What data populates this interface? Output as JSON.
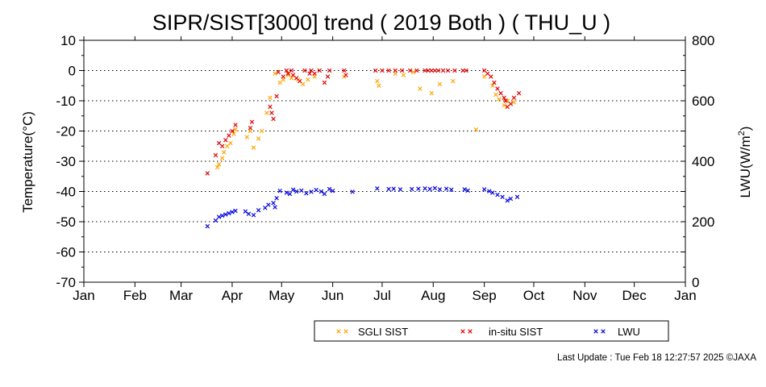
{
  "chart_data": {
    "type": "scatter",
    "title": "SIPR/SIST[3000] trend ( 2019 Both ) ( THU_U )",
    "ylabel": "Temperature(°C)",
    "y2label_main": "LWU(W/m",
    "y2label_sup": "2",
    "y2label_close": ")",
    "ylim": [
      -70,
      10
    ],
    "y2lim": [
      0,
      800
    ],
    "yticks": [
      "10",
      "0",
      "-10",
      "-20",
      "-30",
      "-40",
      "-50",
      "-60",
      "-70"
    ],
    "y2ticks": [
      "800",
      "600",
      "400",
      "200",
      "0"
    ],
    "months": [
      "Jan",
      "Feb",
      "Mar",
      "Apr",
      "May",
      "Jun",
      "Jul",
      "Aug",
      "Sep",
      "Oct",
      "Nov",
      "Dec",
      "Jan"
    ],
    "grid": "dotted horizontal",
    "legend_position": "bottom-right",
    "series": [
      {
        "name": "SGLI SIST",
        "color": "#ffa500",
        "axis": "left",
        "points": [
          [
            "2019-03-23",
            -32
          ],
          [
            "2019-03-24",
            -31
          ],
          [
            "2019-03-26",
            -29
          ],
          [
            "2019-03-27",
            -27
          ],
          [
            "2019-03-29",
            -25
          ],
          [
            "2019-03-31",
            -24
          ],
          [
            "2019-04-02",
            -21
          ],
          [
            "2019-04-03",
            -19.5
          ],
          [
            "2019-04-10",
            -22
          ],
          [
            "2019-04-12",
            -20
          ],
          [
            "2019-04-14",
            -25.5
          ],
          [
            "2019-04-17",
            -22.5
          ],
          [
            "2019-04-19",
            -20
          ],
          [
            "2019-04-22",
            -14
          ],
          [
            "2019-04-24",
            -9
          ],
          [
            "2019-04-27",
            -1
          ],
          [
            "2019-04-30",
            -4
          ],
          [
            "2019-05-02",
            -3
          ],
          [
            "2019-05-05",
            -1.5
          ],
          [
            "2019-05-07",
            -2.5
          ],
          [
            "2019-05-11",
            -3
          ],
          [
            "2019-05-14",
            -4.5
          ],
          [
            "2019-05-17",
            -3
          ],
          [
            "2019-05-21",
            -2
          ],
          [
            "2019-06-08",
            -2
          ],
          [
            "2019-06-28",
            -3.5
          ],
          [
            "2019-06-29",
            -5
          ],
          [
            "2019-07-09",
            -1
          ],
          [
            "2019-07-14",
            -1.5
          ],
          [
            "2019-07-20",
            -0.5
          ],
          [
            "2019-07-24",
            -6
          ],
          [
            "2019-07-31",
            -7.5
          ],
          [
            "2019-08-05",
            -4.5
          ],
          [
            "2019-08-13",
            -3.5
          ],
          [
            "2019-08-27",
            -19.5
          ],
          [
            "2019-09-01",
            -2
          ],
          [
            "2019-09-06",
            -5
          ],
          [
            "2019-09-08",
            -8
          ],
          [
            "2019-09-10",
            -9.5
          ],
          [
            "2019-09-13",
            -11.5
          ],
          [
            "2019-09-15",
            -10
          ],
          [
            "2019-09-17",
            -11
          ],
          [
            "2019-09-19",
            -10.5
          ]
        ]
      },
      {
        "name": "in-situ SIST",
        "color": "#e00000",
        "axis": "left",
        "points": [
          [
            "2019-03-17",
            -34
          ],
          [
            "2019-03-22",
            -28
          ],
          [
            "2019-03-24",
            -24
          ],
          [
            "2019-03-26",
            -25
          ],
          [
            "2019-03-28",
            -23
          ],
          [
            "2019-03-30",
            -21.5
          ],
          [
            "2019-04-01",
            -20
          ],
          [
            "2019-04-03",
            -18
          ],
          [
            "2019-04-12",
            -19
          ],
          [
            "2019-04-13",
            -17
          ],
          [
            "2019-04-24",
            -12
          ],
          [
            "2019-04-25",
            -14
          ],
          [
            "2019-04-26",
            -16
          ],
          [
            "2019-04-28",
            -8.5
          ],
          [
            "2019-04-29",
            -0.5
          ],
          [
            "2019-05-02",
            -2
          ],
          [
            "2019-05-04",
            0
          ],
          [
            "2019-05-05",
            -1
          ],
          [
            "2019-05-07",
            0
          ],
          [
            "2019-05-08",
            -1.5
          ],
          [
            "2019-05-10",
            -2.5
          ],
          [
            "2019-05-12",
            -3.5
          ],
          [
            "2019-05-15",
            0
          ],
          [
            "2019-05-18",
            -1
          ],
          [
            "2019-05-19",
            0
          ],
          [
            "2019-05-21",
            -1
          ],
          [
            "2019-05-24",
            0
          ],
          [
            "2019-05-27",
            -4
          ],
          [
            "2019-05-29",
            -2
          ],
          [
            "2019-05-30",
            0
          ],
          [
            "2019-06-08",
            0
          ],
          [
            "2019-06-09",
            -1.5
          ],
          [
            "2019-06-27",
            0
          ],
          [
            "2019-07-01",
            0
          ],
          [
            "2019-07-05",
            0
          ],
          [
            "2019-07-09",
            0
          ],
          [
            "2019-07-13",
            0
          ],
          [
            "2019-07-18",
            0
          ],
          [
            "2019-07-22",
            0
          ],
          [
            "2019-07-27",
            0
          ],
          [
            "2019-07-29",
            0
          ],
          [
            "2019-07-31",
            0
          ],
          [
            "2019-08-02",
            0
          ],
          [
            "2019-08-04",
            0
          ],
          [
            "2019-08-07",
            0
          ],
          [
            "2019-08-10",
            0
          ],
          [
            "2019-08-14",
            0
          ],
          [
            "2019-08-19",
            0
          ],
          [
            "2019-08-21",
            0
          ],
          [
            "2019-09-01",
            0
          ],
          [
            "2019-09-03",
            -1
          ],
          [
            "2019-09-05",
            -2
          ],
          [
            "2019-09-07",
            -4
          ],
          [
            "2019-09-09",
            -6
          ],
          [
            "2019-09-11",
            -7.5
          ],
          [
            "2019-09-13",
            -9
          ],
          [
            "2019-09-14",
            -10
          ],
          [
            "2019-09-15",
            -12
          ],
          [
            "2019-09-17",
            -11
          ],
          [
            "2019-09-19",
            -9
          ],
          [
            "2019-09-22",
            -7.5
          ]
        ]
      },
      {
        "name": "LWU",
        "color": "#0000e0",
        "axis": "right",
        "points": [
          [
            "2019-03-17",
            185
          ],
          [
            "2019-03-22",
            204
          ],
          [
            "2019-03-24",
            216
          ],
          [
            "2019-03-26",
            220
          ],
          [
            "2019-03-28",
            224
          ],
          [
            "2019-03-30",
            228
          ],
          [
            "2019-04-01",
            232
          ],
          [
            "2019-04-03",
            236
          ],
          [
            "2019-04-09",
            234
          ],
          [
            "2019-04-11",
            226
          ],
          [
            "2019-04-14",
            222
          ],
          [
            "2019-04-17",
            238
          ],
          [
            "2019-04-21",
            246
          ],
          [
            "2019-04-23",
            256
          ],
          [
            "2019-04-26",
            262
          ],
          [
            "2019-04-27",
            248
          ],
          [
            "2019-04-28",
            278
          ],
          [
            "2019-04-30",
            302
          ],
          [
            "2019-05-04",
            296
          ],
          [
            "2019-05-06",
            292
          ],
          [
            "2019-05-08",
            306
          ],
          [
            "2019-05-10",
            300
          ],
          [
            "2019-05-13",
            303
          ],
          [
            "2019-05-16",
            294
          ],
          [
            "2019-05-19",
            299
          ],
          [
            "2019-05-22",
            305
          ],
          [
            "2019-05-25",
            300
          ],
          [
            "2019-05-27",
            292
          ],
          [
            "2019-05-30",
            308
          ],
          [
            "2019-06-01",
            302
          ],
          [
            "2019-06-13",
            299
          ],
          [
            "2019-06-28",
            310
          ],
          [
            "2019-07-05",
            308
          ],
          [
            "2019-07-08",
            309
          ],
          [
            "2019-07-12",
            307
          ],
          [
            "2019-07-19",
            308
          ],
          [
            "2019-07-23",
            309
          ],
          [
            "2019-07-27",
            310
          ],
          [
            "2019-07-30",
            308
          ],
          [
            "2019-08-02",
            311
          ],
          [
            "2019-08-05",
            307
          ],
          [
            "2019-08-09",
            309
          ],
          [
            "2019-08-12",
            306
          ],
          [
            "2019-08-20",
            307
          ],
          [
            "2019-08-22",
            303
          ],
          [
            "2019-09-01",
            307
          ],
          [
            "2019-09-04",
            301
          ],
          [
            "2019-09-06",
            296
          ],
          [
            "2019-09-09",
            289
          ],
          [
            "2019-09-12",
            282
          ],
          [
            "2019-09-15",
            270
          ],
          [
            "2019-09-17",
            276
          ],
          [
            "2019-09-21",
            282
          ]
        ]
      }
    ]
  },
  "footer": {
    "last_update": "Last Update : Tue Feb 18 12:27:57 2025  ©JAXA"
  }
}
